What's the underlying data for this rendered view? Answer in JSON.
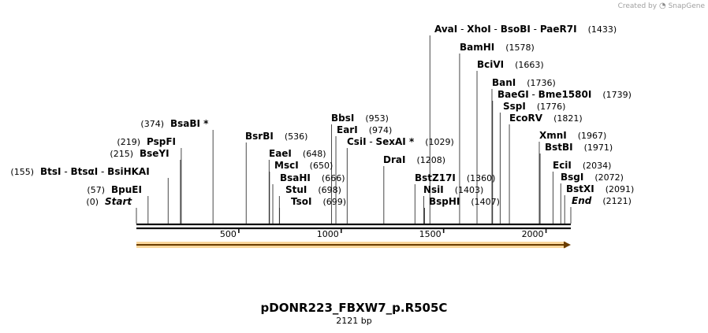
{
  "watermark": {
    "prefix": "Created by",
    "brand": "SnapGene"
  },
  "title": "pDONR223_FBXW7_p.R505C",
  "subtitle": "2121 bp",
  "sequence": {
    "length": 2121,
    "axis_ticks": [
      500,
      1000,
      1500,
      2000
    ]
  },
  "feature": {
    "name": "orange-arrow-feature",
    "start": 1,
    "end": 2121,
    "color": "#f5a623",
    "direction": "forward"
  },
  "sites": [
    {
      "names": [
        "Start"
      ],
      "position": 0,
      "pos_label": "(0)",
      "italic": true,
      "side": "right"
    },
    {
      "names": [
        "BpuEI"
      ],
      "position": 57,
      "pos_label": "(57)",
      "side": "right"
    },
    {
      "names": [
        "BtsI",
        "BtsαI",
        "BsiHKAI"
      ],
      "position": 155,
      "pos_label": "(155)",
      "side": "right"
    },
    {
      "names": [
        "BseYI"
      ],
      "position": 215,
      "pos_label": "(215)",
      "side": "right"
    },
    {
      "names": [
        "PspFI"
      ],
      "position": 219,
      "pos_label": "(219)",
      "side": "right"
    },
    {
      "names": [
        "BsaBI *"
      ],
      "position": 374,
      "pos_label": "(374)",
      "side": "right"
    },
    {
      "names": [
        "BsrBI"
      ],
      "position": 536,
      "pos_label": "(536)",
      "side": "left"
    },
    {
      "names": [
        "EaeI"
      ],
      "position": 648,
      "pos_label": "(648)",
      "side": "left"
    },
    {
      "names": [
        "MscI"
      ],
      "position": 650,
      "pos_label": "(650)",
      "side": "left"
    },
    {
      "names": [
        "BsaHI"
      ],
      "position": 666,
      "pos_label": "(666)",
      "side": "left"
    },
    {
      "names": [
        "StuI"
      ],
      "position": 698,
      "pos_label": "(698)",
      "side": "left"
    },
    {
      "names": [
        "TsoI"
      ],
      "position": 699,
      "pos_label": "(699)",
      "side": "left"
    },
    {
      "names": [
        "BbsI"
      ],
      "position": 953,
      "pos_label": "(953)",
      "side": "left"
    },
    {
      "names": [
        "EarI"
      ],
      "position": 974,
      "pos_label": "(974)",
      "side": "left"
    },
    {
      "names": [
        "CsiI",
        "SexAI *"
      ],
      "position": 1029,
      "pos_label": "(1029)",
      "side": "left"
    },
    {
      "names": [
        "DraI"
      ],
      "position": 1208,
      "pos_label": "(1208)",
      "side": "left"
    },
    {
      "names": [
        "BstZ17I"
      ],
      "position": 1360,
      "pos_label": "(1360)",
      "side": "left"
    },
    {
      "names": [
        "NsiI"
      ],
      "position": 1403,
      "pos_label": "(1403)",
      "side": "left"
    },
    {
      "names": [
        "BspHI"
      ],
      "position": 1407,
      "pos_label": "(1407)",
      "side": "left"
    },
    {
      "names": [
        "AvaI",
        "XhoI",
        "BsoBI",
        "PaeR7I"
      ],
      "position": 1433,
      "pos_label": "(1433)",
      "side": "left"
    },
    {
      "names": [
        "BamHI"
      ],
      "position": 1578,
      "pos_label": "(1578)",
      "side": "left"
    },
    {
      "names": [
        "BciVI"
      ],
      "position": 1663,
      "pos_label": "(1663)",
      "side": "left"
    },
    {
      "names": [
        "BanI"
      ],
      "position": 1736,
      "pos_label": "(1736)",
      "side": "left"
    },
    {
      "names": [
        "BaeGI",
        "Bme1580I"
      ],
      "position": 1739,
      "pos_label": "(1739)",
      "side": "left"
    },
    {
      "names": [
        "SspI"
      ],
      "position": 1776,
      "pos_label": "(1776)",
      "side": "left"
    },
    {
      "names": [
        "EcoRV"
      ],
      "position": 1821,
      "pos_label": "(1821)",
      "side": "left"
    },
    {
      "names": [
        "XmnI"
      ],
      "position": 1967,
      "pos_label": "(1967)",
      "side": "left"
    },
    {
      "names": [
        "BstBI"
      ],
      "position": 1971,
      "pos_label": "(1971)",
      "side": "left"
    },
    {
      "names": [
        "EciI"
      ],
      "position": 2034,
      "pos_label": "(2034)",
      "side": "left"
    },
    {
      "names": [
        "BsgI"
      ],
      "position": 2072,
      "pos_label": "(2072)",
      "side": "left"
    },
    {
      "names": [
        "BstXI"
      ],
      "position": 2091,
      "pos_label": "(2091)",
      "side": "left"
    },
    {
      "names": [
        "End"
      ],
      "position": 2121,
      "pos_label": "(2121)",
      "italic": true,
      "side": "left"
    }
  ]
}
